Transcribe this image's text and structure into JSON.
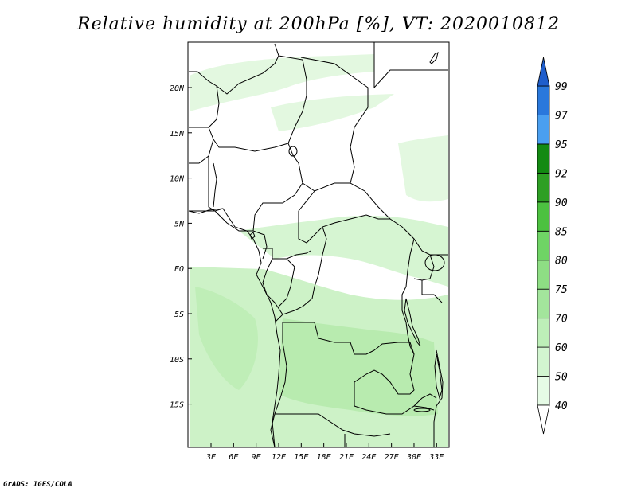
{
  "title": "Relative humidity at 200hPa [%], VT: 2020010812",
  "credit": "GrADS: IGES/COLA",
  "map": {
    "lon_ticks": [
      "3E",
      "6E",
      "9E",
      "12E",
      "15E",
      "18E",
      "21E",
      "24E",
      "27E",
      "30E",
      "33E"
    ],
    "lat_ticks": [
      "20N",
      "15N",
      "10N",
      "5N",
      "EQ",
      "5S",
      "10S",
      "15S"
    ]
  },
  "colorbar": {
    "levels": [
      "40",
      "50",
      "60",
      "70",
      "75",
      "80",
      "85",
      "90",
      "92",
      "95",
      "97",
      "99"
    ],
    "colors": [
      "#ffffff",
      "#e6fbe6",
      "#d2f5d0",
      "#bdefb8",
      "#a3e59c",
      "#8ede84",
      "#6fd465",
      "#4cc140",
      "#2e9f24",
      "#138a12",
      "#4a9ff0",
      "#2a78dc",
      "#1f5ecc"
    ]
  },
  "colors": {
    "land_border": "#000000",
    "rh_light": "#d9f7d5",
    "rh_mid": "#c4f0be",
    "rh_strong": "#b0e8a6"
  }
}
